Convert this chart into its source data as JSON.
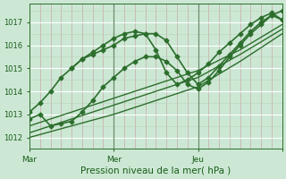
{
  "title": "",
  "xlabel": "Pression niveau de la mer( hPa )",
  "ylabel": "",
  "bg_color": "#cce8d4",
  "grid_color_major": "#b8d4be",
  "grid_color_minor": "#b8d4be",
  "grid_color_white": "#ffffff",
  "line_color": "#2d6e2d",
  "vline_day_color": "#6e8c6e",
  "vline_minor_color": "#c8a8a8",
  "tick_color": "#2d6e2d",
  "label_color": "#1a5c1a",
  "ylim": [
    1011.5,
    1017.8
  ],
  "xlim": [
    0,
    72
  ],
  "yticks": [
    1012,
    1013,
    1014,
    1015,
    1016,
    1017
  ],
  "xtick_positions": [
    0,
    24,
    48,
    72
  ],
  "xtick_labels": [
    "Mar",
    "Mer",
    "Jeu",
    ""
  ],
  "day_vlines": [
    24,
    48
  ],
  "series": [
    {
      "comment": "main forecast line with peak at ~36h",
      "x": [
        0,
        3,
        6,
        9,
        12,
        15,
        18,
        21,
        24,
        27,
        30,
        33,
        36,
        39,
        42,
        45,
        48,
        51,
        54,
        57,
        60,
        63,
        66,
        69,
        72
      ],
      "y": [
        1013.1,
        1013.5,
        1014.0,
        1014.6,
        1015.0,
        1015.4,
        1015.6,
        1015.8,
        1016.0,
        1016.3,
        1016.4,
        1016.5,
        1016.5,
        1016.2,
        1015.5,
        1014.8,
        1014.3,
        1014.6,
        1015.1,
        1015.6,
        1016.1,
        1016.6,
        1017.0,
        1017.3,
        1017.1
      ],
      "marker": "D",
      "ms": 2.5,
      "lw": 1.2,
      "style": "-"
    },
    {
      "comment": "second marked line starting lower",
      "x": [
        0,
        3,
        6,
        9,
        12,
        15,
        18,
        21,
        24,
        27,
        30,
        33,
        36,
        39,
        42,
        45,
        48,
        51,
        54,
        57,
        60,
        63,
        66,
        69,
        72
      ],
      "y": [
        1012.8,
        1013.0,
        1012.5,
        1012.6,
        1012.7,
        1013.1,
        1013.6,
        1014.2,
        1014.6,
        1015.0,
        1015.3,
        1015.5,
        1015.5,
        1015.3,
        1014.9,
        1014.3,
        1014.1,
        1014.4,
        1014.9,
        1015.5,
        1016.0,
        1016.5,
        1016.9,
        1017.3,
        1017.5
      ],
      "marker": "D",
      "ms": 2.5,
      "lw": 1.2,
      "style": "-"
    },
    {
      "comment": "trend line 1 - straight-ish from bottom-left to top-right",
      "x": [
        0,
        12,
        24,
        36,
        48,
        60,
        72
      ],
      "y": [
        1012.0,
        1012.5,
        1013.0,
        1013.6,
        1014.2,
        1015.3,
        1016.5
      ],
      "marker": null,
      "ms": 0,
      "lw": 1.0,
      "style": "-"
    },
    {
      "comment": "trend line 2",
      "x": [
        0,
        12,
        24,
        36,
        48,
        60,
        72
      ],
      "y": [
        1012.2,
        1012.8,
        1013.4,
        1014.0,
        1014.6,
        1015.6,
        1016.7
      ],
      "marker": null,
      "ms": 0,
      "lw": 1.0,
      "style": "-"
    },
    {
      "comment": "trend line 3",
      "x": [
        0,
        12,
        24,
        36,
        48,
        60,
        72
      ],
      "y": [
        1012.5,
        1013.1,
        1013.7,
        1014.3,
        1014.9,
        1015.8,
        1016.9
      ],
      "marker": null,
      "ms": 0,
      "lw": 1.0,
      "style": "-"
    },
    {
      "comment": "third marked line - peaks at mer then dips and recovers",
      "x": [
        12,
        15,
        18,
        21,
        24,
        27,
        30,
        33,
        36,
        39,
        42,
        45,
        48,
        51,
        54,
        57,
        60,
        63,
        66,
        69,
        72
      ],
      "y": [
        1015.0,
        1015.4,
        1015.7,
        1016.0,
        1016.3,
        1016.5,
        1016.6,
        1016.5,
        1015.8,
        1014.8,
        1014.3,
        1014.5,
        1014.8,
        1015.2,
        1015.7,
        1016.1,
        1016.5,
        1016.9,
        1017.2,
        1017.4,
        1017.1
      ],
      "marker": "D",
      "ms": 2.5,
      "lw": 1.2,
      "style": "-"
    }
  ]
}
